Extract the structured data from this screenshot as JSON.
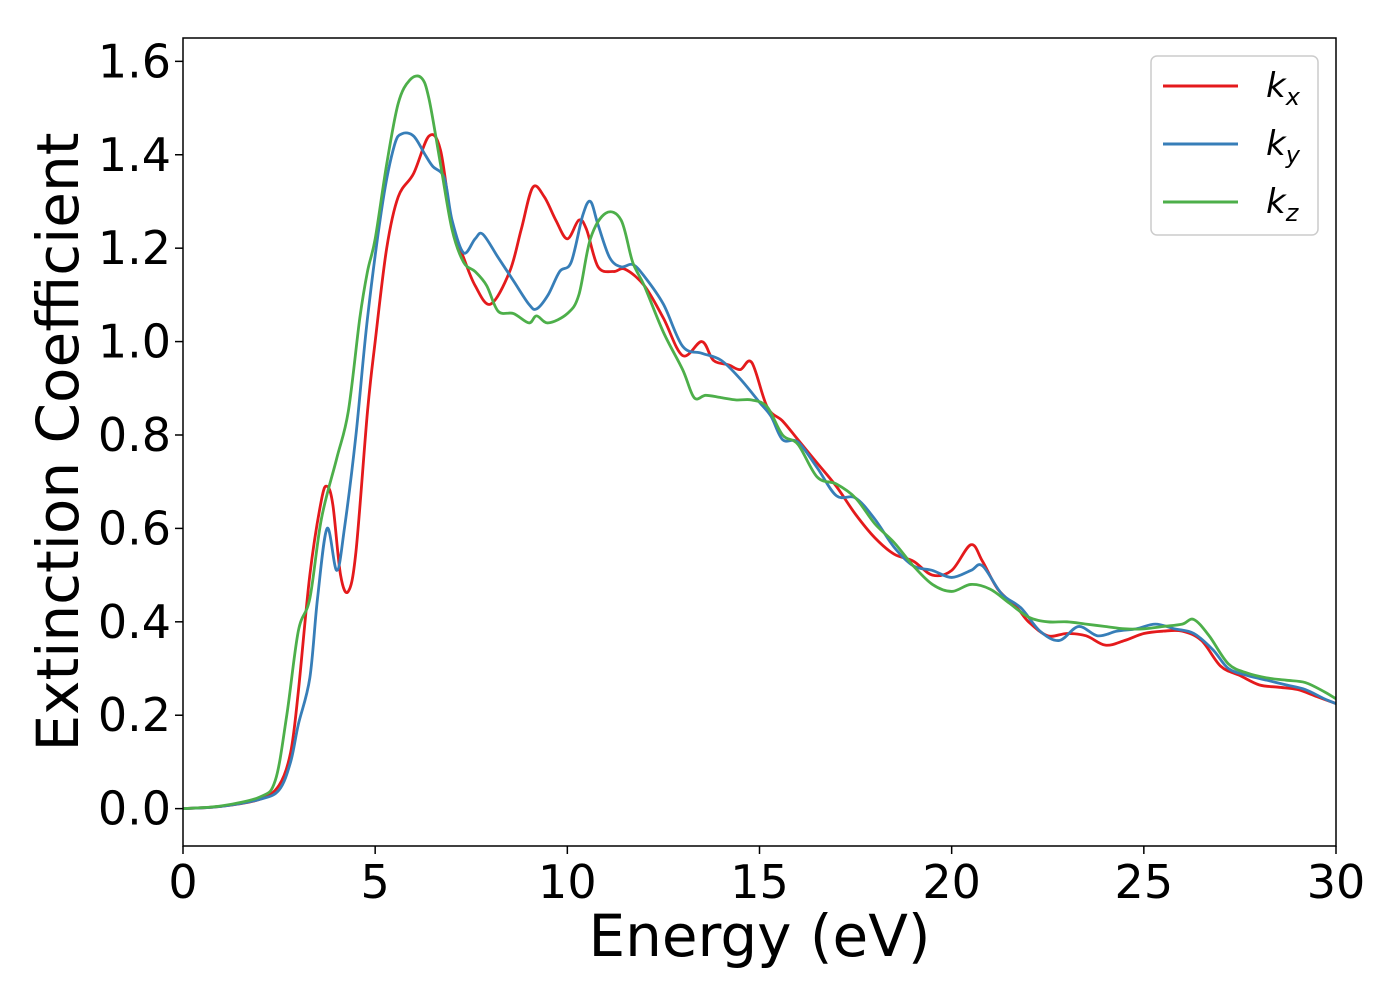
{
  "chart_data": {
    "type": "line",
    "xlabel": "Energy (eV)",
    "ylabel": "Extinction Coefficient",
    "xlim": [
      0,
      30
    ],
    "ylim": [
      -0.08,
      1.65
    ],
    "xticks": [
      0,
      5,
      10,
      15,
      20,
      25,
      30
    ],
    "xtick_labels": [
      "0",
      "5",
      "10",
      "15",
      "20",
      "25",
      "30"
    ],
    "yticks": [
      0.0,
      0.2,
      0.4,
      0.6,
      0.8,
      1.0,
      1.2,
      1.4,
      1.6
    ],
    "ytick_labels": [
      "0.0",
      "0.2",
      "0.4",
      "0.6",
      "0.8",
      "1.0",
      "1.2",
      "1.4",
      "1.6"
    ],
    "grid": false,
    "legend_position": "top-right",
    "series": [
      {
        "name": "k_x",
        "label_base": "k",
        "label_sub": "x",
        "color": "#e41a1c",
        "points": [
          [
            0,
            0
          ],
          [
            1,
            0.005
          ],
          [
            2,
            0.02
          ],
          [
            2.5,
            0.05
          ],
          [
            2.8,
            0.12
          ],
          [
            3.0,
            0.25
          ],
          [
            3.3,
            0.5
          ],
          [
            3.6,
            0.66
          ],
          [
            3.75,
            0.69
          ],
          [
            3.9,
            0.65
          ],
          [
            4.1,
            0.5
          ],
          [
            4.3,
            0.465
          ],
          [
            4.5,
            0.55
          ],
          [
            4.8,
            0.85
          ],
          [
            5.0,
            1.0
          ],
          [
            5.3,
            1.2
          ],
          [
            5.6,
            1.31
          ],
          [
            6.0,
            1.36
          ],
          [
            6.4,
            1.44
          ],
          [
            6.7,
            1.41
          ],
          [
            7.0,
            1.25
          ],
          [
            7.3,
            1.18
          ],
          [
            7.6,
            1.12
          ],
          [
            8.0,
            1.08
          ],
          [
            8.5,
            1.15
          ],
          [
            8.8,
            1.24
          ],
          [
            9.1,
            1.33
          ],
          [
            9.4,
            1.31
          ],
          [
            9.7,
            1.26
          ],
          [
            10.0,
            1.22
          ],
          [
            10.3,
            1.26
          ],
          [
            10.5,
            1.24
          ],
          [
            10.8,
            1.16
          ],
          [
            11.2,
            1.15
          ],
          [
            11.5,
            1.155
          ],
          [
            12.0,
            1.12
          ],
          [
            12.5,
            1.05
          ],
          [
            13.0,
            0.97
          ],
          [
            13.5,
            1.0
          ],
          [
            13.8,
            0.96
          ],
          [
            14.2,
            0.95
          ],
          [
            14.5,
            0.94
          ],
          [
            14.8,
            0.955
          ],
          [
            15.2,
            0.86
          ],
          [
            15.6,
            0.83
          ],
          [
            16.0,
            0.79
          ],
          [
            16.5,
            0.74
          ],
          [
            17.0,
            0.69
          ],
          [
            17.5,
            0.63
          ],
          [
            18.0,
            0.58
          ],
          [
            18.5,
            0.545
          ],
          [
            19.0,
            0.53
          ],
          [
            19.5,
            0.5
          ],
          [
            20.0,
            0.51
          ],
          [
            20.5,
            0.565
          ],
          [
            20.8,
            0.53
          ],
          [
            21.2,
            0.47
          ],
          [
            21.7,
            0.43
          ],
          [
            22.0,
            0.4
          ],
          [
            22.5,
            0.37
          ],
          [
            23.0,
            0.375
          ],
          [
            23.5,
            0.37
          ],
          [
            24.0,
            0.35
          ],
          [
            24.5,
            0.36
          ],
          [
            25.0,
            0.375
          ],
          [
            25.5,
            0.38
          ],
          [
            26.0,
            0.38
          ],
          [
            26.5,
            0.36
          ],
          [
            27.0,
            0.305
          ],
          [
            27.5,
            0.285
          ],
          [
            28.0,
            0.265
          ],
          [
            28.5,
            0.26
          ],
          [
            29.0,
            0.255
          ],
          [
            29.5,
            0.24
          ],
          [
            30.0,
            0.225
          ]
        ]
      },
      {
        "name": "k_y",
        "label_base": "k",
        "label_sub": "y",
        "color": "#377eb8",
        "points": [
          [
            0,
            0
          ],
          [
            1,
            0.005
          ],
          [
            2,
            0.02
          ],
          [
            2.5,
            0.04
          ],
          [
            2.8,
            0.1
          ],
          [
            3.0,
            0.18
          ],
          [
            3.3,
            0.28
          ],
          [
            3.5,
            0.45
          ],
          [
            3.75,
            0.6
          ],
          [
            4.0,
            0.51
          ],
          [
            4.2,
            0.6
          ],
          [
            4.5,
            0.8
          ],
          [
            4.8,
            1.05
          ],
          [
            5.2,
            1.3
          ],
          [
            5.5,
            1.42
          ],
          [
            5.7,
            1.445
          ],
          [
            6.0,
            1.44
          ],
          [
            6.3,
            1.4
          ],
          [
            6.5,
            1.375
          ],
          [
            6.8,
            1.35
          ],
          [
            7.0,
            1.26
          ],
          [
            7.3,
            1.19
          ],
          [
            7.6,
            1.22
          ],
          [
            7.8,
            1.23
          ],
          [
            8.2,
            1.18
          ],
          [
            8.6,
            1.13
          ],
          [
            9.0,
            1.08
          ],
          [
            9.2,
            1.07
          ],
          [
            9.5,
            1.1
          ],
          [
            9.8,
            1.15
          ],
          [
            10.1,
            1.17
          ],
          [
            10.4,
            1.27
          ],
          [
            10.6,
            1.3
          ],
          [
            10.8,
            1.25
          ],
          [
            11.1,
            1.18
          ],
          [
            11.4,
            1.16
          ],
          [
            11.7,
            1.165
          ],
          [
            12.0,
            1.14
          ],
          [
            12.5,
            1.08
          ],
          [
            13.0,
            0.99
          ],
          [
            13.5,
            0.975
          ],
          [
            14.0,
            0.96
          ],
          [
            14.5,
            0.92
          ],
          [
            15.0,
            0.87
          ],
          [
            15.3,
            0.84
          ],
          [
            15.6,
            0.79
          ],
          [
            16.0,
            0.785
          ],
          [
            16.5,
            0.73
          ],
          [
            17.0,
            0.67
          ],
          [
            17.5,
            0.665
          ],
          [
            18.0,
            0.62
          ],
          [
            18.5,
            0.56
          ],
          [
            19.0,
            0.52
          ],
          [
            19.5,
            0.51
          ],
          [
            20.0,
            0.495
          ],
          [
            20.5,
            0.51
          ],
          [
            20.8,
            0.52
          ],
          [
            21.3,
            0.46
          ],
          [
            21.8,
            0.43
          ],
          [
            22.3,
            0.38
          ],
          [
            22.8,
            0.36
          ],
          [
            23.3,
            0.39
          ],
          [
            23.8,
            0.37
          ],
          [
            24.3,
            0.38
          ],
          [
            24.8,
            0.385
          ],
          [
            25.3,
            0.395
          ],
          [
            25.8,
            0.385
          ],
          [
            26.3,
            0.375
          ],
          [
            26.8,
            0.34
          ],
          [
            27.2,
            0.3
          ],
          [
            27.7,
            0.285
          ],
          [
            28.2,
            0.275
          ],
          [
            28.7,
            0.265
          ],
          [
            29.2,
            0.255
          ],
          [
            29.7,
            0.235
          ],
          [
            30.0,
            0.225
          ]
        ]
      },
      {
        "name": "k_z",
        "label_base": "k",
        "label_sub": "z",
        "color": "#4daf4a",
        "points": [
          [
            0,
            0
          ],
          [
            1,
            0.006
          ],
          [
            2,
            0.025
          ],
          [
            2.4,
            0.06
          ],
          [
            2.7,
            0.2
          ],
          [
            3.0,
            0.38
          ],
          [
            3.3,
            0.45
          ],
          [
            3.6,
            0.62
          ],
          [
            4.0,
            0.75
          ],
          [
            4.3,
            0.85
          ],
          [
            4.6,
            1.05
          ],
          [
            4.8,
            1.15
          ],
          [
            5.0,
            1.22
          ],
          [
            5.3,
            1.38
          ],
          [
            5.6,
            1.51
          ],
          [
            5.9,
            1.56
          ],
          [
            6.2,
            1.565
          ],
          [
            6.4,
            1.52
          ],
          [
            6.7,
            1.38
          ],
          [
            7.0,
            1.24
          ],
          [
            7.3,
            1.17
          ],
          [
            7.6,
            1.15
          ],
          [
            7.9,
            1.12
          ],
          [
            8.2,
            1.065
          ],
          [
            8.6,
            1.06
          ],
          [
            9.0,
            1.04
          ],
          [
            9.2,
            1.055
          ],
          [
            9.5,
            1.04
          ],
          [
            10.0,
            1.06
          ],
          [
            10.3,
            1.1
          ],
          [
            10.6,
            1.22
          ],
          [
            11.0,
            1.275
          ],
          [
            11.4,
            1.26
          ],
          [
            11.7,
            1.17
          ],
          [
            12.0,
            1.12
          ],
          [
            12.5,
            1.02
          ],
          [
            13.0,
            0.94
          ],
          [
            13.3,
            0.88
          ],
          [
            13.6,
            0.885
          ],
          [
            14.0,
            0.88
          ],
          [
            14.4,
            0.875
          ],
          [
            14.8,
            0.875
          ],
          [
            15.2,
            0.86
          ],
          [
            15.6,
            0.8
          ],
          [
            16.0,
            0.78
          ],
          [
            16.5,
            0.71
          ],
          [
            17.0,
            0.695
          ],
          [
            17.5,
            0.665
          ],
          [
            18.0,
            0.61
          ],
          [
            18.5,
            0.57
          ],
          [
            19.0,
            0.52
          ],
          [
            19.5,
            0.48
          ],
          [
            20.0,
            0.465
          ],
          [
            20.5,
            0.48
          ],
          [
            21.0,
            0.47
          ],
          [
            21.5,
            0.44
          ],
          [
            22.0,
            0.41
          ],
          [
            22.5,
            0.4
          ],
          [
            23.0,
            0.4
          ],
          [
            23.5,
            0.395
          ],
          [
            24.0,
            0.39
          ],
          [
            24.5,
            0.385
          ],
          [
            25.0,
            0.385
          ],
          [
            25.5,
            0.39
          ],
          [
            26.0,
            0.395
          ],
          [
            26.3,
            0.405
          ],
          [
            26.7,
            0.37
          ],
          [
            27.2,
            0.31
          ],
          [
            27.7,
            0.29
          ],
          [
            28.2,
            0.28
          ],
          [
            28.7,
            0.275
          ],
          [
            29.2,
            0.27
          ],
          [
            29.7,
            0.25
          ],
          [
            30.0,
            0.235
          ]
        ]
      }
    ]
  }
}
